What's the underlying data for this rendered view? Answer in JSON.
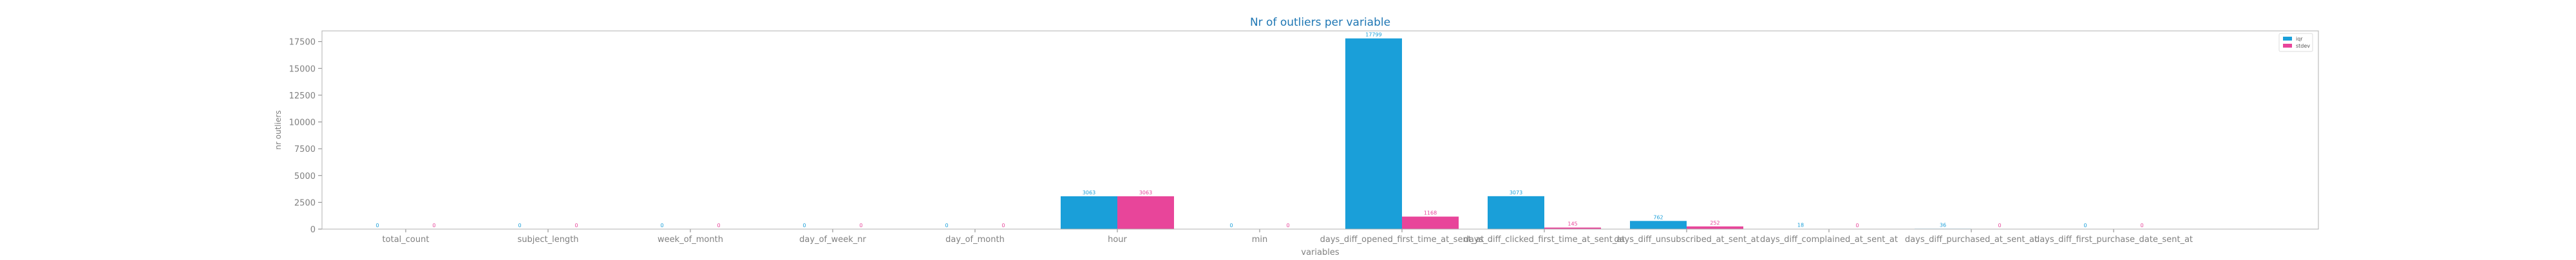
{
  "chart_data": {
    "type": "bar",
    "title": "Nr of outliers per variable",
    "xlabel": "variables",
    "ylabel": "nr outliers",
    "categories": [
      "total_count",
      "subject_length",
      "week_of_month",
      "day_of_week_nr",
      "day_of_month",
      "hour",
      "min",
      "days_diff_opened_first_time_at_sent_at",
      "days_diff_clicked_first_time_at_sent_at",
      "days_diff_unsubscribed_at_sent_at",
      "days_diff_complained_at_sent_at",
      "days_diff_purchased_at_sent_at",
      "days_diff_first_purchase_date_sent_at"
    ],
    "series": [
      {
        "name": "iqr",
        "color": "#1a9fd9",
        "values": [
          0,
          0,
          0,
          0,
          0,
          3063,
          0,
          17799,
          3073,
          762,
          18,
          36,
          0
        ]
      },
      {
        "name": "stdev",
        "color": "#e8459a",
        "values": [
          0,
          0,
          0,
          0,
          0,
          3063,
          0,
          1168,
          145,
          252,
          0,
          0,
          0
        ]
      }
    ],
    "data_labels": [
      [
        "0",
        "0",
        "0",
        "0",
        "0",
        "3063",
        "0",
        "17799",
        "3073",
        "762",
        "18",
        "36",
        "0"
      ],
      [
        "0",
        "0",
        "0",
        "0",
        "0",
        "3063",
        "0",
        "1168",
        "145",
        "252",
        "0",
        "0",
        "0"
      ]
    ],
    "ylim": [
      0,
      18500
    ],
    "yticks": [
      0,
      2500,
      5000,
      7500,
      10000,
      12500,
      15000,
      17500
    ],
    "ytick_labels": [
      "0",
      "2500",
      "5000",
      "7500",
      "10000",
      "12500",
      "15000",
      "17500"
    ],
    "legend_position": "top-right",
    "grid": false
  }
}
